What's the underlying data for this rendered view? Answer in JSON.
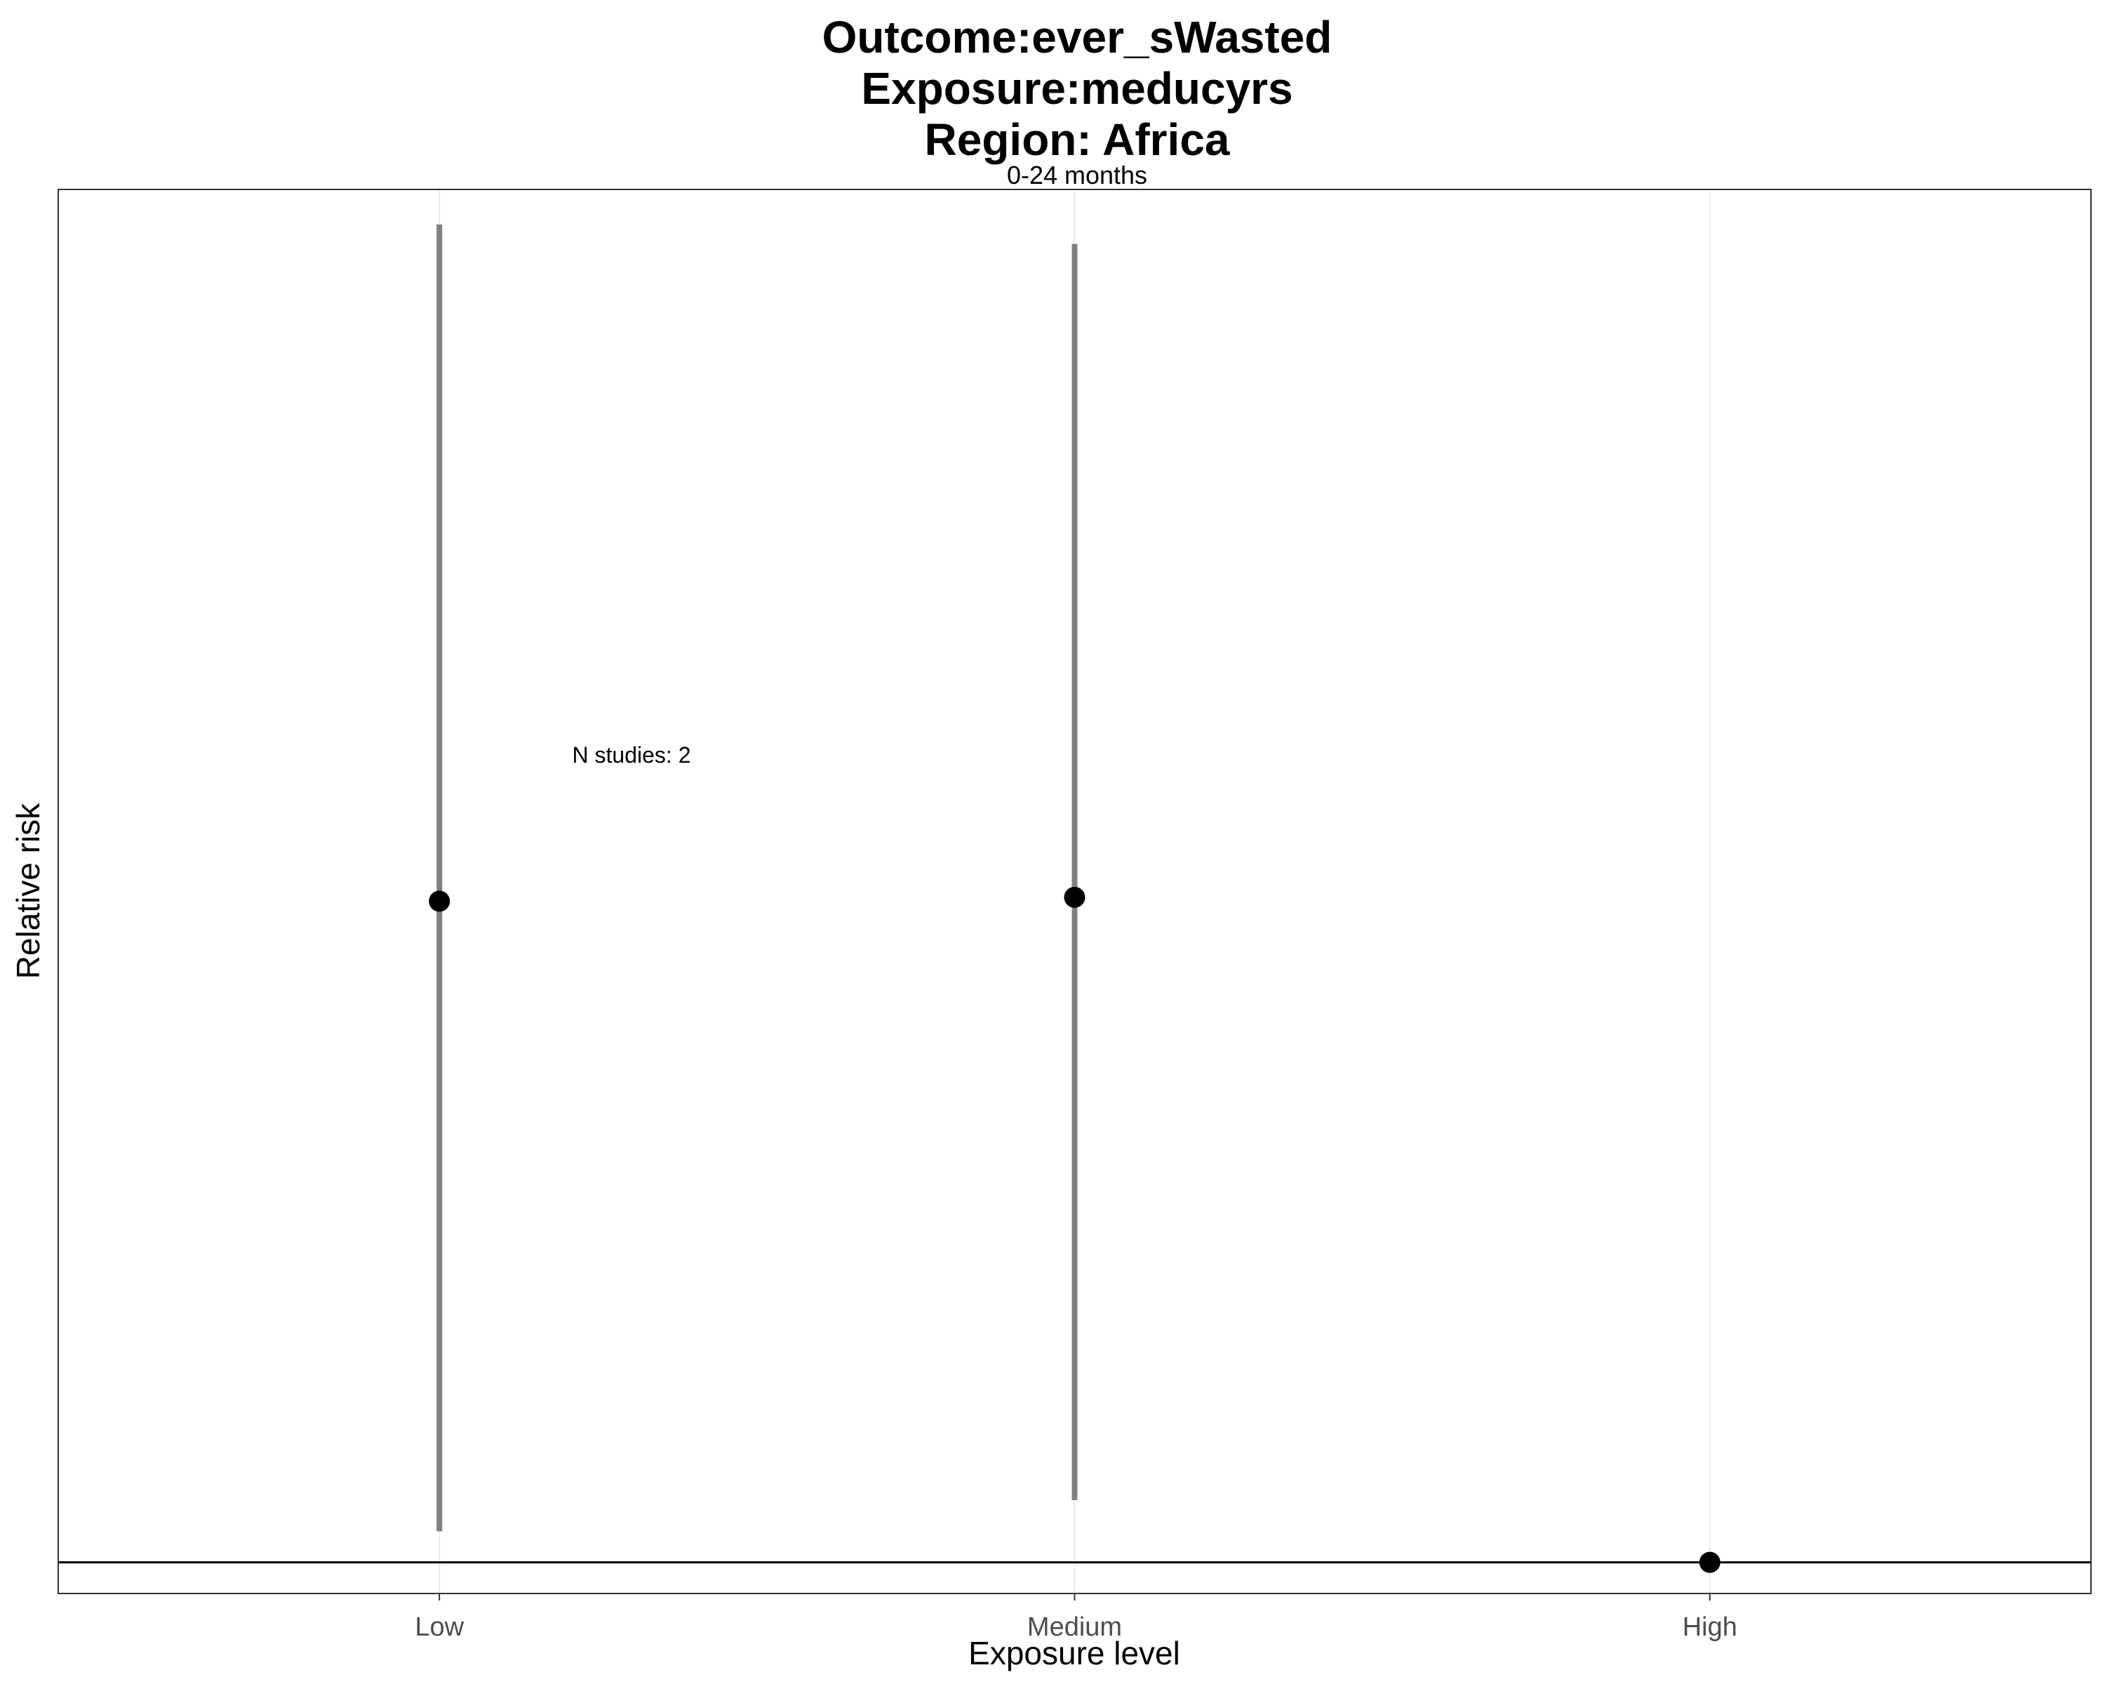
{
  "chart_data": {
    "type": "scatter",
    "title_lines": [
      "Outcome:ever_sWasted",
      "Exposure:meducyrs",
      "Region: Africa"
    ],
    "facet_label": "0-24 months",
    "xlabel": "Exposure level",
    "ylabel": "Relative risk",
    "categories": [
      "Low",
      "Medium",
      "High"
    ],
    "series": [
      {
        "name": "Relative risk",
        "points": [
          {
            "category": "Low",
            "rr": 1.85,
            "ci_lower": 1.04,
            "ci_upper": 2.72
          },
          {
            "category": "Medium",
            "rr": 1.855,
            "ci_lower": 1.08,
            "ci_upper": 2.695
          },
          {
            "category": "High",
            "rr": 1.0,
            "ci_lower": null,
            "ci_upper": null
          }
        ]
      }
    ],
    "reference_line": 1.0,
    "ylim": [
      0.96,
      2.765
    ],
    "y_ticks_shown": false,
    "annotation": "N studies: 2",
    "grid": "vertical-major",
    "colors": {
      "point": "#000000",
      "ci": "#808080",
      "grid": "#ebebeb",
      "panel_border": "#333333",
      "reference": "#000000"
    }
  }
}
